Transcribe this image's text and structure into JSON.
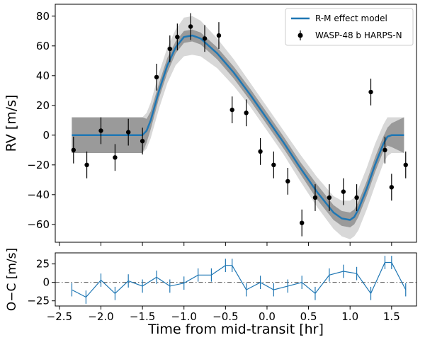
{
  "chart_data": [
    {
      "type": "line",
      "ylabel": "RV [m/s]",
      "xlim": [
        -2.55,
        1.8
      ],
      "ylim": [
        -72,
        88
      ],
      "yticks": [
        -60,
        -40,
        -20,
        0,
        20,
        40,
        60,
        80
      ],
      "grid": false,
      "legend": {
        "placement": "top-right",
        "entries": [
          "R-M effect model",
          "WASP-48 b HARPS-N"
        ]
      },
      "colors": {
        "model": "#1f77b4",
        "band_inner": "#9a9a9a",
        "band_outer": "#d8d8d8",
        "data": "#000000"
      },
      "series": [
        {
          "name": "R-M effect model",
          "x": [
            -2.35,
            -1.6,
            -1.5,
            -1.45,
            -1.4,
            -1.3,
            -1.2,
            -1.1,
            -1.0,
            -0.9,
            -0.8,
            -0.6,
            -0.4,
            -0.2,
            0.0,
            0.2,
            0.4,
            0.6,
            0.8,
            0.9,
            1.0,
            1.05,
            1.1,
            1.2,
            1.3,
            1.4,
            1.45,
            1.5,
            1.65
          ],
          "y": [
            0,
            0,
            0,
            3,
            10,
            30,
            47,
            59,
            66,
            67,
            65,
            55,
            42,
            27,
            11,
            -5,
            -22,
            -38,
            -52,
            -56,
            -57,
            -55,
            -50,
            -36,
            -20,
            -6,
            -1,
            0,
            0
          ],
          "band_inner_halfwidth": [
            12,
            12,
            12,
            8,
            6,
            5,
            5,
            4,
            4,
            4,
            4,
            4,
            4,
            4,
            4,
            4,
            4,
            5,
            5,
            5,
            5,
            5,
            5,
            5,
            5,
            5,
            6,
            8,
            12
          ],
          "band_outer_halfwidth": [
            12,
            12,
            12,
            12,
            12,
            12,
            12,
            12,
            13,
            13,
            12,
            10,
            9,
            8,
            8,
            8,
            9,
            10,
            11,
            12,
            13,
            13,
            14,
            14,
            14,
            13,
            13,
            12,
            12
          ]
        },
        {
          "name": "WASP-48 b HARPS-N",
          "x": [
            -2.33,
            -2.17,
            -2.0,
            -1.83,
            -1.67,
            -1.5,
            -1.33,
            -1.17,
            -1.08,
            -0.92,
            -0.75,
            -0.58,
            -0.42,
            -0.25,
            -0.08,
            0.08,
            0.25,
            0.42,
            0.58,
            0.75,
            0.92,
            1.08,
            1.25,
            1.42,
            1.5,
            1.67
          ],
          "y": [
            -10,
            -20,
            3,
            -15,
            2,
            -4,
            39,
            58,
            66,
            73,
            65,
            67,
            17,
            15,
            -11,
            -20,
            -31,
            -59,
            -42,
            -42,
            -38,
            -42,
            29,
            -10,
            -35,
            -20
          ],
          "yerr": [
            9,
            9,
            9,
            9,
            9,
            9,
            9,
            9,
            9,
            9,
            9,
            9,
            9,
            9,
            9,
            9,
            9,
            9,
            9,
            9,
            9,
            9,
            9,
            9,
            9,
            9
          ]
        }
      ]
    },
    {
      "type": "line",
      "xlabel": "Time from mid-transit [hr]",
      "ylabel": "O−C [m/s]",
      "xlim": [
        -2.55,
        1.8
      ],
      "ylim": [
        -32,
        40
      ],
      "xticks": [
        -2.5,
        -2.0,
        -1.5,
        -1.0,
        -0.5,
        0.0,
        0.5,
        1.0,
        1.5
      ],
      "xtick_labels": [
        "−2.5",
        "−2.0",
        "−1.5",
        "−1.0",
        "−0.5",
        "0.0",
        "0.5",
        "1.0",
        "1.5"
      ],
      "yticks": [
        -25,
        0,
        25
      ],
      "zero_line": true,
      "grid": false,
      "series": [
        {
          "x": [
            -2.35,
            -2.18,
            -2.0,
            -1.83,
            -1.67,
            -1.5,
            -1.33,
            -1.17,
            -1.0,
            -0.83,
            -0.67,
            -0.5,
            -0.42,
            -0.25,
            -0.08,
            0.08,
            0.25,
            0.42,
            0.58,
            0.75,
            0.92,
            1.08,
            1.25,
            1.42,
            1.5,
            1.67
          ],
          "y": [
            -10,
            -20,
            3,
            -15,
            2,
            -5,
            7,
            -5,
            -1,
            10,
            10,
            23,
            23,
            -10,
            0,
            -10,
            -5,
            0,
            -15,
            10,
            15,
            12,
            -15,
            27,
            27,
            -10
          ],
          "yerr": [
            9,
            9,
            9,
            9,
            9,
            9,
            9,
            9,
            9,
            9,
            9,
            9,
            9,
            9,
            9,
            9,
            9,
            9,
            9,
            9,
            9,
            9,
            9,
            9,
            9,
            9
          ]
        }
      ]
    }
  ]
}
